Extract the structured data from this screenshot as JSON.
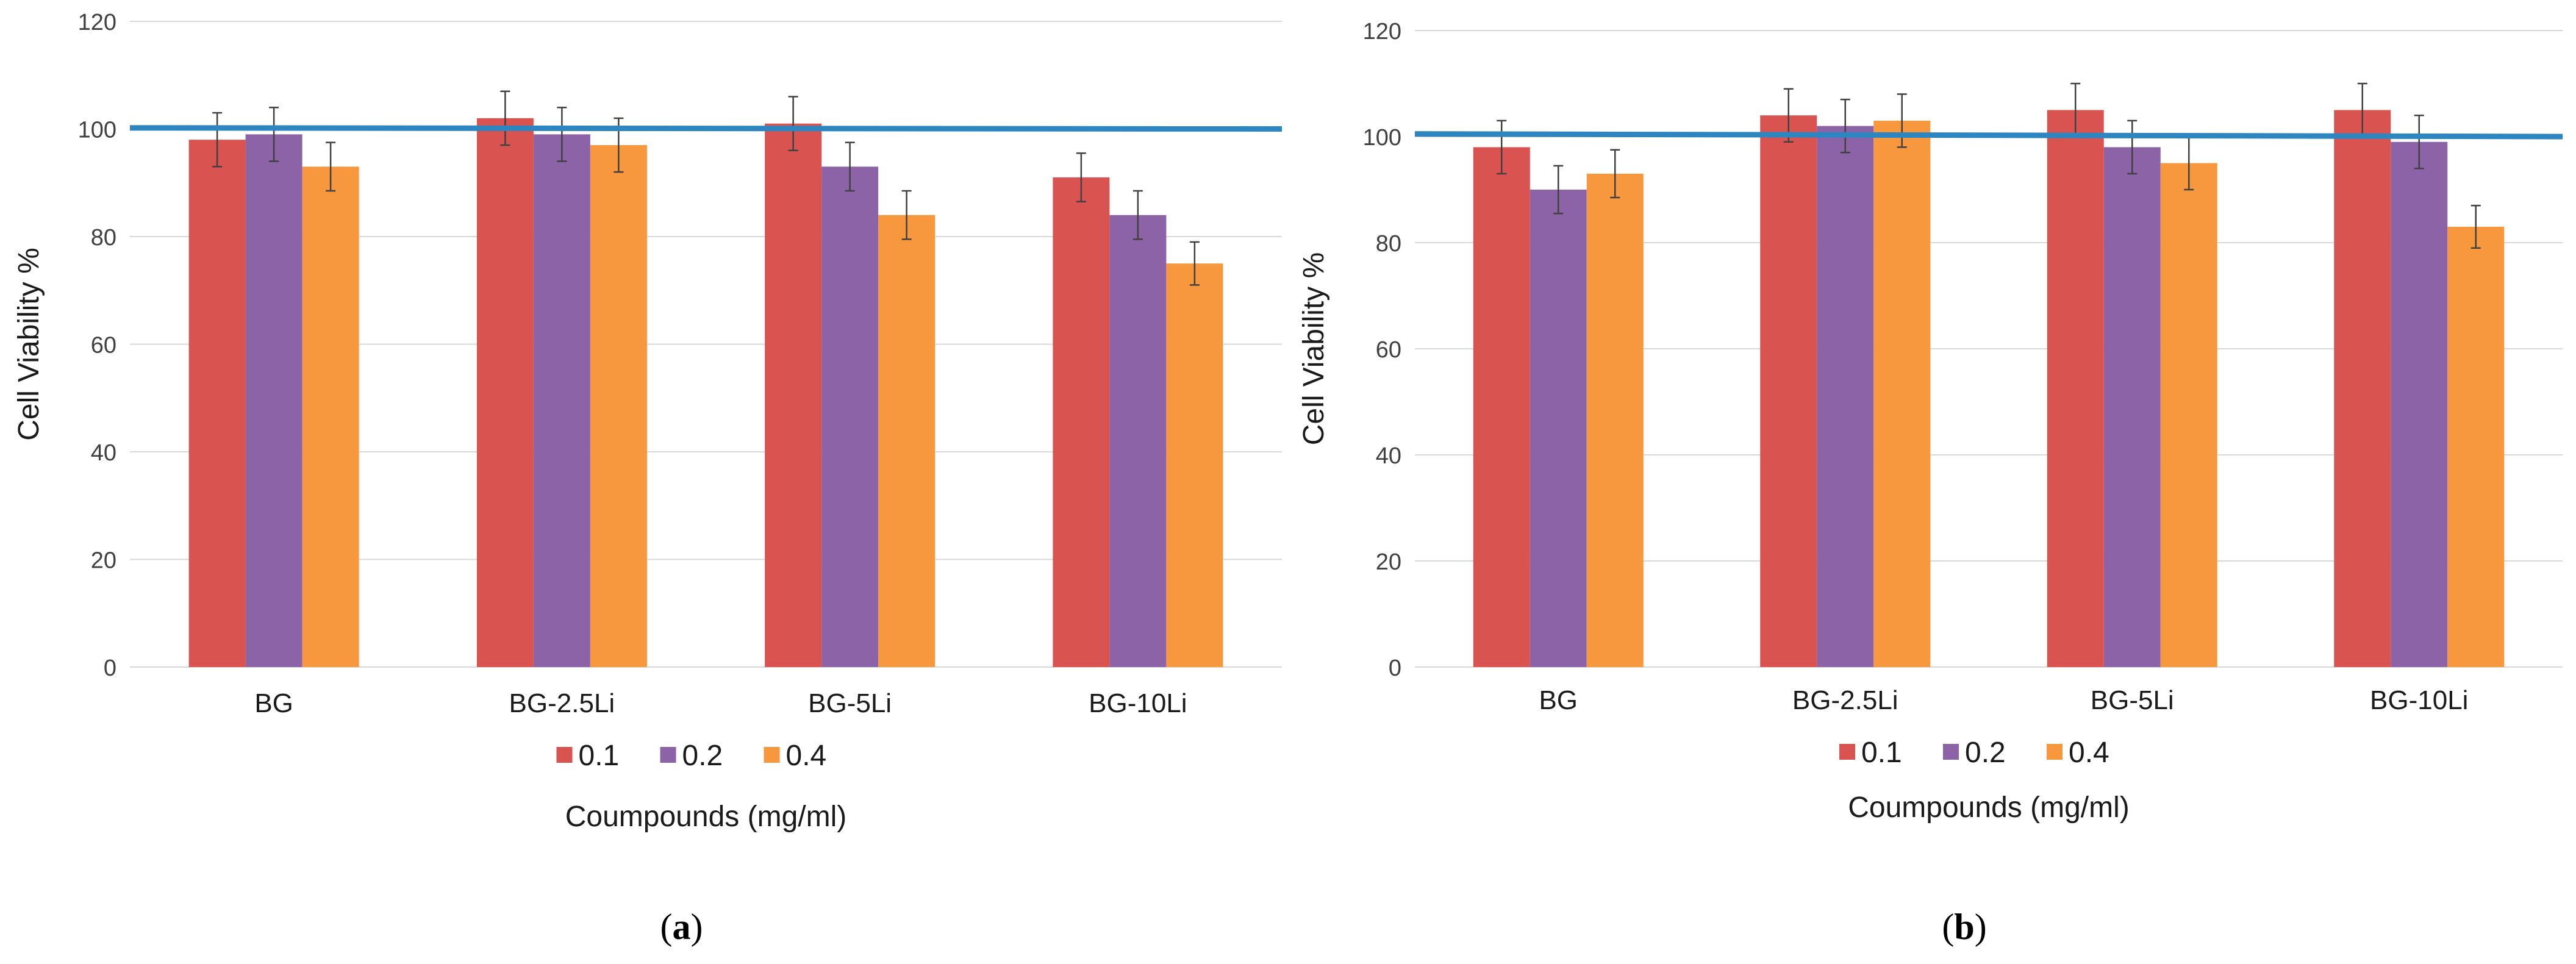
{
  "colors": {
    "series_0.1": "#D95350",
    "series_0.2": "#8B63A6",
    "series_0.4": "#F7973E",
    "reference_line": "#2E86C1",
    "gridline": "#D9D9D9"
  },
  "chart_data": [
    {
      "panel_label": "(a)",
      "panel_letter": "a",
      "type": "bar",
      "title": "",
      "ylabel": "Cell Viability %",
      "xlabel": "Coumpounds  (mg/ml)",
      "ylim": [
        0,
        120
      ],
      "yticks": [
        0,
        20,
        40,
        60,
        80,
        100,
        120
      ],
      "grid": true,
      "legend_position": "bottom",
      "categories": [
        "BG",
        "BG-2.5Li",
        "BG-5Li",
        "BG-10Li"
      ],
      "series": [
        {
          "name": "0.1",
          "values": [
            98,
            102,
            101,
            91
          ],
          "errors": [
            5,
            5,
            5,
            4.5
          ]
        },
        {
          "name": "0.2",
          "values": [
            99,
            99,
            93,
            84
          ],
          "errors": [
            5,
            5,
            4.5,
            4.5
          ]
        },
        {
          "name": "0.4",
          "values": [
            93,
            97,
            84,
            75
          ],
          "errors": [
            4.5,
            5,
            4.5,
            4
          ]
        }
      ],
      "reference_line": {
        "y_start": 100.2,
        "y_end": 100
      }
    },
    {
      "panel_label": "(b)",
      "panel_letter": "b",
      "type": "bar",
      "title": "",
      "ylabel": "Cell Viability %",
      "xlabel": "Coumpounds  (mg/ml)",
      "ylim": [
        0,
        120
      ],
      "yticks": [
        0,
        20,
        40,
        60,
        80,
        100,
        120
      ],
      "grid": true,
      "legend_position": "bottom",
      "categories": [
        "BG",
        "BG-2.5Li",
        "BG-5Li",
        "BG-10Li"
      ],
      "series": [
        {
          "name": "0.1",
          "values": [
            98,
            104,
            105,
            105
          ],
          "errors": [
            5,
            5,
            5,
            5
          ]
        },
        {
          "name": "0.2",
          "values": [
            90,
            102,
            98,
            99
          ],
          "errors": [
            4.5,
            5,
            5,
            5
          ]
        },
        {
          "name": "0.4",
          "values": [
            93,
            103,
            95,
            83
          ],
          "errors": [
            4.5,
            5,
            5,
            4
          ]
        }
      ],
      "reference_line": {
        "y_start": 100.5,
        "y_end": 100
      }
    }
  ]
}
